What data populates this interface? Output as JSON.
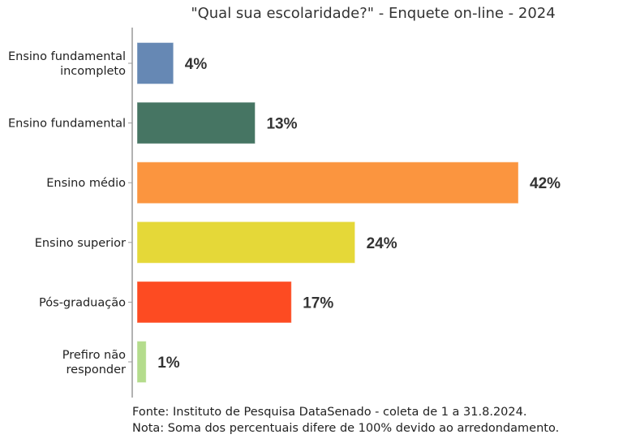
{
  "chart_data": {
    "type": "bar",
    "orientation": "horizontal",
    "title": "\"Qual sua escolaridade?\" - Enquete on-line - 2024",
    "categories": [
      [
        "Ensino fundamental",
        "incompleto"
      ],
      [
        "Ensino fundamental"
      ],
      [
        "Ensino médio"
      ],
      [
        "Ensino superior"
      ],
      [
        "Pós-graduação"
      ],
      [
        "Prefiro não",
        "responder"
      ]
    ],
    "values": [
      4,
      13,
      42,
      24,
      17,
      1
    ],
    "labels": [
      "4%",
      "13%",
      "42%",
      "24%",
      "17%",
      "1%"
    ],
    "colors": [
      "#6688b4",
      "#467563",
      "#fb953f",
      "#e5d838",
      "#fd4b22",
      "#b4dc8c"
    ],
    "xlim": [
      0,
      42
    ],
    "grid": false
  },
  "footer": {
    "source": "Fonte: Instituto de Pesquisa DataSenado - coleta de 1 a 31.8.2024.",
    "note": "Nota: Soma dos percentuais difere de 100% devido ao arredondamento."
  }
}
